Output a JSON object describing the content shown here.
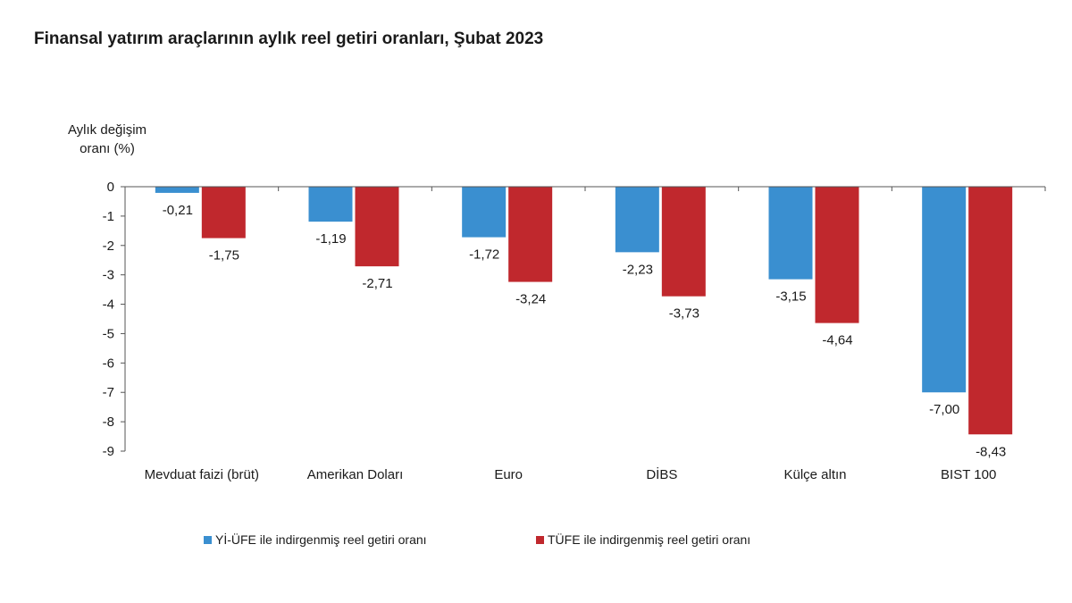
{
  "chart_data": {
    "type": "bar",
    "title": "Finansal yatırım araçlarının aylık reel getiri oranları, Şubat 2023",
    "ylabel_lines": [
      "Aylık değişim",
      "oranı (%)"
    ],
    "xlabel": "",
    "ylim": [
      -9,
      0
    ],
    "yticks": [
      0,
      -1,
      -2,
      -3,
      -4,
      -5,
      -6,
      -7,
      -8,
      -9
    ],
    "categories": [
      "Mevduat faizi (brüt)",
      "Amerikan Doları",
      "Euro",
      "DİBS",
      "Külçe altın",
      "BIST 100"
    ],
    "series": [
      {
        "name": "Yİ-ÜFE ile indirgenmiş reel getiri oranı",
        "color": "#3a8fd0",
        "values": [
          -0.21,
          -1.19,
          -1.72,
          -2.23,
          -3.15,
          -7.0
        ],
        "labels": [
          "-0,21",
          "-1,19",
          "-1,72",
          "-2,23",
          "-3,15",
          "-7,00"
        ]
      },
      {
        "name": "TÜFE ile indirgenmiş reel getiri oranı",
        "color": "#c0282d",
        "values": [
          -1.75,
          -2.71,
          -3.24,
          -3.73,
          -4.64,
          -8.43
        ],
        "labels": [
          "-1,75",
          "-2,71",
          "-3,24",
          "-3,73",
          "-4,64",
          "-8,43"
        ]
      }
    ],
    "legend_position": "bottom-center"
  }
}
